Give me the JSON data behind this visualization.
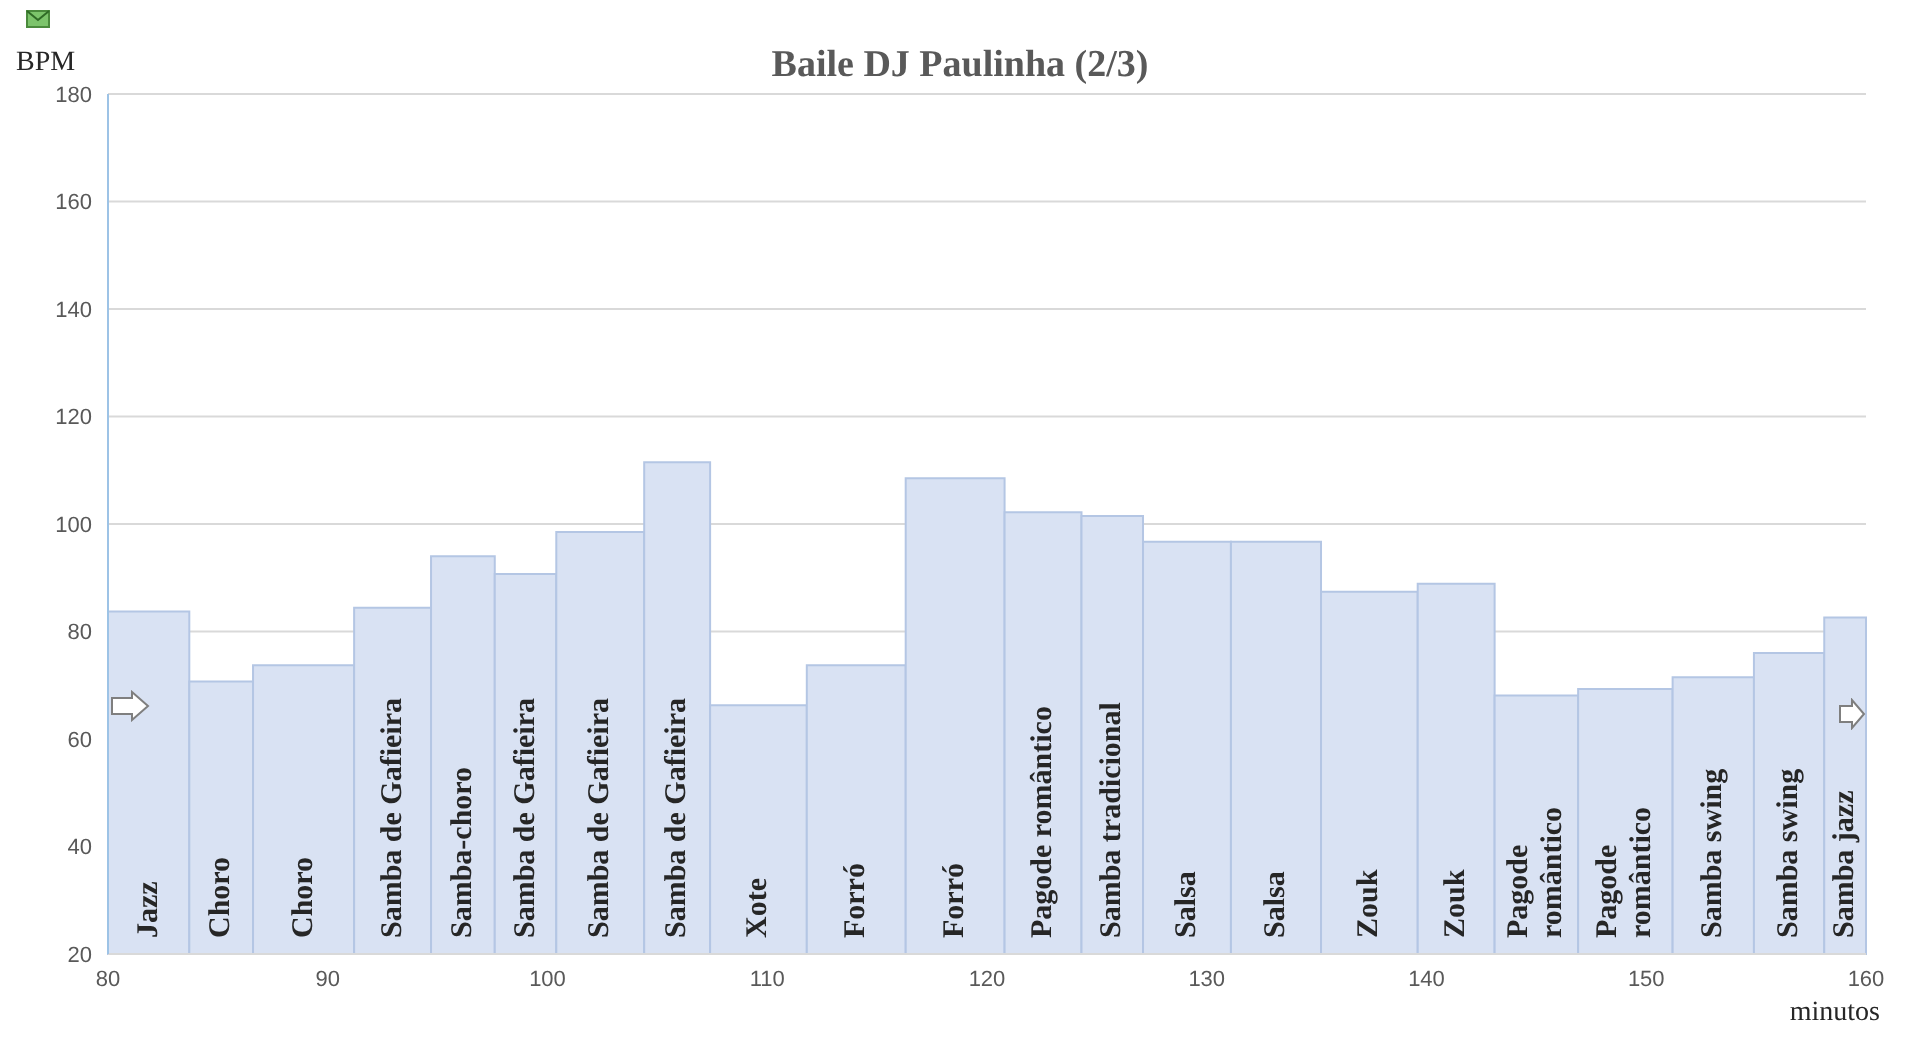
{
  "chart_data": {
    "type": "histogram",
    "title": "Baile DJ Paulinha (2/3)",
    "xlabel": "minutos",
    "ylabel": "BPM",
    "bins": [
      80,
      83.7,
      86.6,
      91.2,
      94.7,
      97.6,
      100.4,
      104.4,
      107.4,
      111.8,
      116.3,
      120.8,
      124.3,
      127.1,
      131.1,
      135.2,
      139.6,
      143.1,
      146.9,
      151.2,
      154.9,
      158.1,
      160
    ],
    "values": [
      83.7,
      70.7,
      73.7,
      84.4,
      94,
      90.7,
      98.5,
      111.5,
      66.3,
      73.7,
      108.5,
      102.2,
      101.5,
      96.7,
      96.7,
      87.4,
      88.9,
      68.1,
      69.3,
      71.5,
      76,
      82.6
    ],
    "categories": [
      "Jazz",
      "Choro",
      "Choro",
      "Samba de Gafieira",
      "Samba-choro",
      "Samba de Gafieira",
      "Samba de Gafieira",
      "Samba de Gafieira",
      "Xote",
      "Forró",
      "Forró",
      "Pagode romântico",
      "Samba tradicional",
      "Salsa",
      "Salsa",
      "Zouk",
      "Zouk",
      "Pagode romântico",
      "Pagode romântico",
      "Samba swing",
      "Samba swing",
      "Samba jazz"
    ],
    "color": "#d9e2f3",
    "xlim": [
      80,
      160
    ],
    "xticks": [
      80,
      90,
      100,
      110,
      120,
      130,
      140,
      150,
      160
    ],
    "ylim": [
      20,
      180
    ],
    "yticks": [
      20,
      40,
      60,
      80,
      100,
      120,
      140,
      160,
      180
    ],
    "grid": "y"
  }
}
